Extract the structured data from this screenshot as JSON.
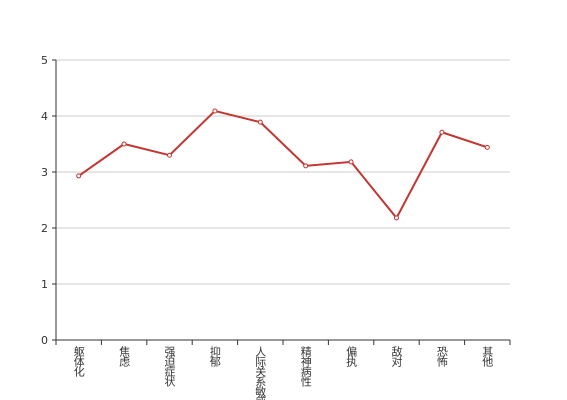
{
  "chart_data": {
    "type": "line",
    "categories": [
      "躯体化",
      "焦虑",
      "强迫症状",
      "抑郁",
      "人际关系敏感",
      "精神病性",
      "偏执",
      "敌对",
      "恐怖",
      "其他"
    ],
    "series": [
      {
        "color": "#c23531",
        "values": [
          2.93,
          3.5,
          3.3,
          4.09,
          3.89,
          3.11,
          3.18,
          2.18,
          3.71,
          3.44
        ]
      }
    ],
    "ylim": [
      0,
      5
    ],
    "yticks": [
      0,
      1,
      2,
      3,
      4,
      5
    ],
    "grid": true
  }
}
